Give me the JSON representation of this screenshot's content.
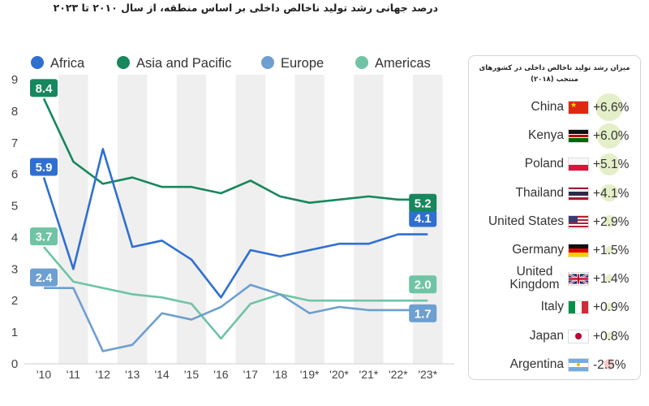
{
  "chart_data": {
    "type": "line",
    "title": "درصد جهانی رشد تولید ناخالص داخلی بر اساس منطقه، از سال ۲۰۱۰ تا ۲۰۲۳",
    "x": [
      "'10",
      "'11",
      "'12",
      "'13",
      "'14",
      "'15",
      "'16",
      "'17",
      "'18",
      "'19*",
      "'20*",
      "'21*",
      "'22*",
      "'23*"
    ],
    "y_ticks": [
      "0",
      "1",
      "2",
      "3",
      "4",
      "5",
      "6",
      "7",
      "8",
      "9"
    ],
    "ylim": [
      0,
      9
    ],
    "legend_position": "top",
    "series": [
      {
        "name": "Africa",
        "color": "#2f6fd1",
        "values": [
          5.9,
          3.0,
          6.8,
          3.7,
          3.9,
          3.3,
          2.1,
          3.6,
          3.4,
          3.6,
          3.8,
          3.8,
          4.1,
          4.1
        ],
        "start_label": "5.9",
        "end_label": "4.1"
      },
      {
        "name": "Asia and Pacific",
        "color": "#17875d",
        "values": [
          8.4,
          6.4,
          5.7,
          5.9,
          5.6,
          5.6,
          5.4,
          5.8,
          5.3,
          5.1,
          5.2,
          5.3,
          5.2,
          5.2
        ],
        "start_label": "8.4",
        "end_label": "5.2"
      },
      {
        "name": "Europe",
        "color": "#6d9fd0",
        "values": [
          2.4,
          2.4,
          0.4,
          0.6,
          1.6,
          1.4,
          1.8,
          2.5,
          2.2,
          1.6,
          1.8,
          1.7,
          1.7,
          1.7
        ],
        "start_label": "2.4",
        "end_label": "1.7"
      },
      {
        "name": "Americas",
        "color": "#6fc4a5",
        "values": [
          3.7,
          2.6,
          2.4,
          2.2,
          2.1,
          1.9,
          0.8,
          1.9,
          2.2,
          2.0,
          2.0,
          2.0,
          2.0,
          2.0
        ],
        "start_label": "3.7",
        "end_label": "2.0"
      }
    ]
  },
  "panel": {
    "title": "میزان رشد تولید ناخالص داخلی در کشورهای منتخب (۲۰۱۸)",
    "countries": [
      {
        "name": "China",
        "value": "+6.6%",
        "num": 6.6,
        "flag": "china-flag"
      },
      {
        "name": "Kenya",
        "value": "+6.0%",
        "num": 6.0,
        "flag": "kenya-flag"
      },
      {
        "name": "Poland",
        "value": "+5.1%",
        "num": 5.1,
        "flag": "poland-flag"
      },
      {
        "name": "Thailand",
        "value": "+4.1%",
        "num": 4.1,
        "flag": "thailand-flag"
      },
      {
        "name": "United States",
        "value": "+2.9%",
        "num": 2.9,
        "flag": "usa-flag"
      },
      {
        "name": "Germany",
        "value": "+1.5%",
        "num": 1.5,
        "flag": "germany-flag"
      },
      {
        "name": "United Kingdom",
        "value": "+1.4%",
        "num": 1.4,
        "flag": "uk-flag"
      },
      {
        "name": "Italy",
        "value": "+0.9%",
        "num": 0.9,
        "flag": "italy-flag"
      },
      {
        "name": "Japan",
        "value": "+0.8%",
        "num": 0.8,
        "flag": "japan-flag"
      },
      {
        "name": "Argentina",
        "value": "-2.5%",
        "num": -2.5,
        "flag": "argentina-flag"
      }
    ],
    "bubble_positive": "#e4efc9",
    "bubble_negative": "#f7c9c9"
  }
}
